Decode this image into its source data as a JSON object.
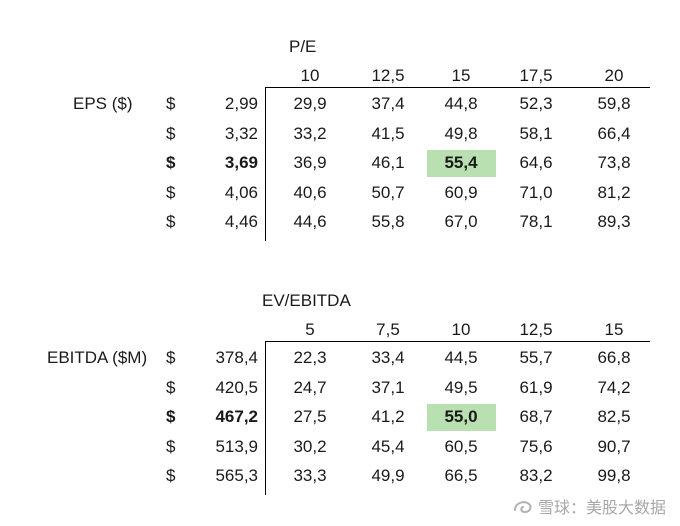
{
  "table1": {
    "axis_label": "P/E",
    "row_label": "EPS ($)",
    "cols": [
      "10",
      "12,5",
      "15",
      "17,5",
      "20"
    ],
    "rows": [
      {
        "cur": "$",
        "val": "2,99",
        "cells": [
          "29,9",
          "37,4",
          "44,8",
          "52,3",
          "59,8"
        ]
      },
      {
        "cur": "$",
        "val": "3,32",
        "cells": [
          "33,2",
          "41,5",
          "49,8",
          "58,1",
          "66,4"
        ]
      },
      {
        "cur": "$",
        "val": "3,69",
        "cells": [
          "36,9",
          "46,1",
          "55,4",
          "64,6",
          "73,8"
        ]
      },
      {
        "cur": "$",
        "val": "4,06",
        "cells": [
          "40,6",
          "50,7",
          "60,9",
          "71,0",
          "81,2"
        ]
      },
      {
        "cur": "$",
        "val": "4,46",
        "cells": [
          "44,6",
          "55,8",
          "67,0",
          "78,1",
          "89,3"
        ]
      }
    ]
  },
  "table2": {
    "axis_label": "EV/EBITDA",
    "row_label": "EBITDA ($M)",
    "cols": [
      "5",
      "7,5",
      "10",
      "12,5",
      "15"
    ],
    "rows": [
      {
        "cur": "$",
        "val": "378,4",
        "cells": [
          "22,3",
          "33,4",
          "44,5",
          "55,7",
          "66,8"
        ]
      },
      {
        "cur": "$",
        "val": "420,5",
        "cells": [
          "24,7",
          "37,1",
          "49,5",
          "61,9",
          "74,2"
        ]
      },
      {
        "cur": "$",
        "val": "467,2",
        "cells": [
          "27,5",
          "41,2",
          "55,0",
          "68,7",
          "82,5"
        ]
      },
      {
        "cur": "$",
        "val": "513,9",
        "cells": [
          "30,2",
          "45,4",
          "60,5",
          "75,6",
          "90,7"
        ]
      },
      {
        "cur": "$",
        "val": "565,3",
        "cells": [
          "33,3",
          "49,9",
          "66,5",
          "83,2",
          "99,8"
        ]
      }
    ]
  },
  "highlight_color": "#b9e0b0",
  "watermark": "雪球：美股大数据"
}
